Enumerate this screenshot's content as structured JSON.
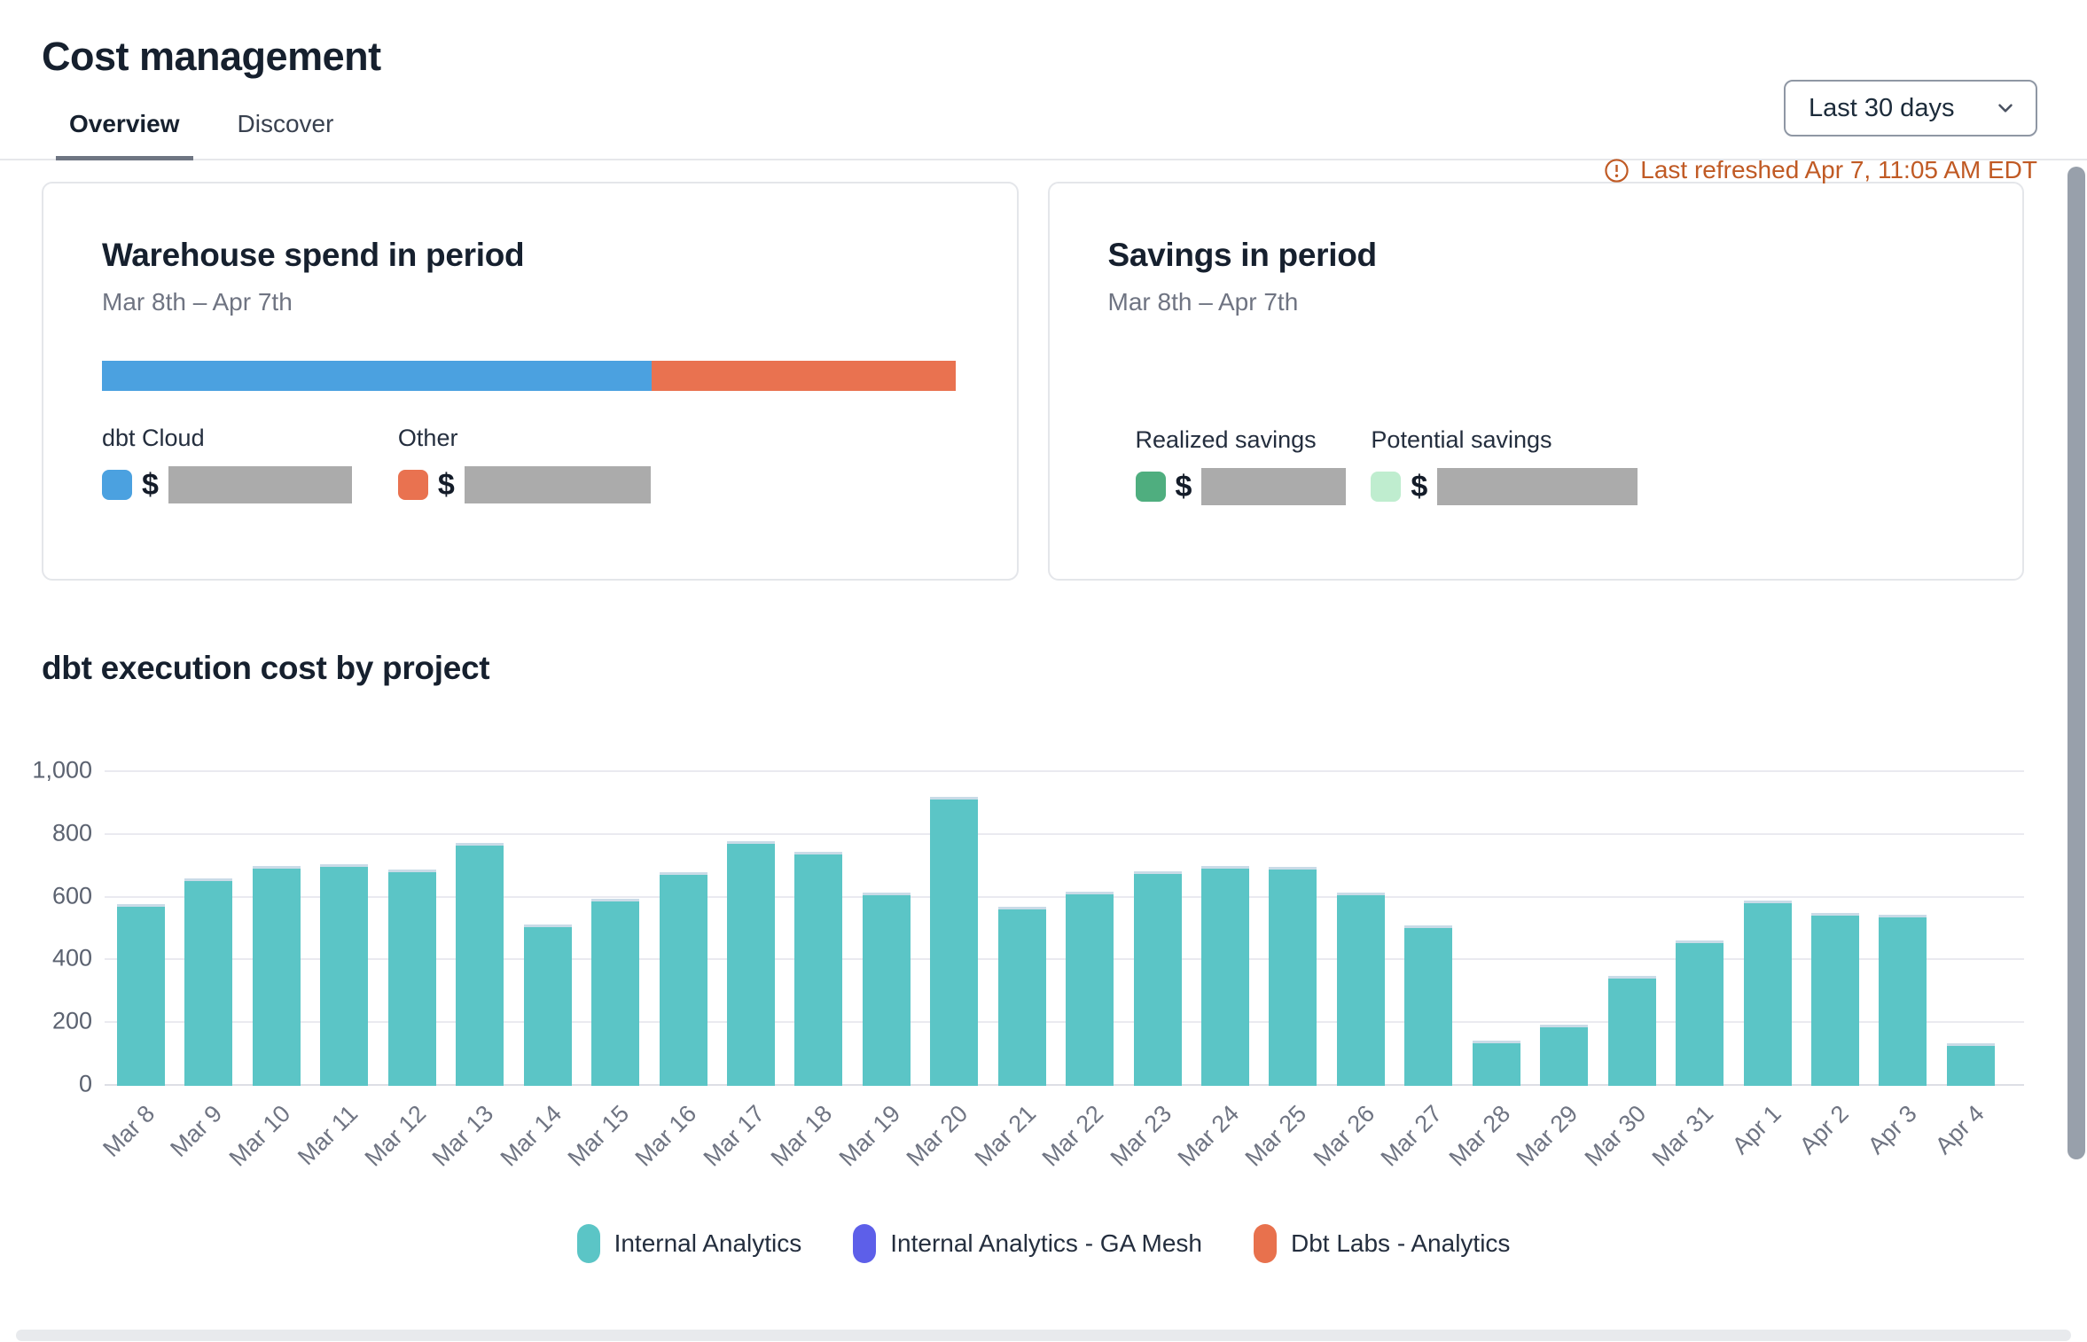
{
  "page": {
    "title": "Cost management"
  },
  "tabs": [
    {
      "label": "Overview",
      "active": true
    },
    {
      "label": "Discover",
      "active": false
    }
  ],
  "period_selector": {
    "value": "Last 30 days"
  },
  "refresh": {
    "text": "Last refreshed Apr 7, 11:05 AM EDT",
    "color": "#c05a24"
  },
  "cards": {
    "warehouse": {
      "title": "Warehouse spend in period",
      "date_range": "Mar 8th – Apr 7th",
      "currency_symbol": "$",
      "segments": [
        {
          "label": "dbt Cloud",
          "color": "#4ba1e0",
          "width_pct": 64.3
        },
        {
          "label": "Other",
          "color": "#e97250",
          "width_pct": 35.7
        }
      ]
    },
    "savings": {
      "title": "Savings in period",
      "date_range": "Mar 8th – Apr 7th",
      "currency_symbol": "$",
      "items": [
        {
          "label": "Realized savings",
          "color": "#4fae7f"
        },
        {
          "label": "Potential savings",
          "color": "#bfedcf"
        }
      ]
    }
  },
  "chart_section": {
    "title": "dbt execution cost by project"
  },
  "chart_data": {
    "type": "bar",
    "title": "dbt execution cost by project",
    "xlabel": "",
    "ylabel": "",
    "ylim": [
      0,
      1000
    ],
    "grid": true,
    "legend_position": "bottom",
    "bar_color": "#5bc5c6",
    "yticks": [
      {
        "v": 0,
        "label": "0"
      },
      {
        "v": 200,
        "label": "200"
      },
      {
        "v": 400,
        "label": "400"
      },
      {
        "v": 600,
        "label": "600"
      },
      {
        "v": 800,
        "label": "800"
      },
      {
        "v": 1000,
        "label": "1,000"
      }
    ],
    "categories": [
      "Mar 8",
      "Mar 9",
      "Mar 10",
      "Mar 11",
      "Mar 12",
      "Mar 13",
      "Mar 14",
      "Mar 15",
      "Mar 16",
      "Mar 17",
      "Mar 18",
      "Mar 19",
      "Mar 20",
      "Mar 21",
      "Mar 22",
      "Mar 23",
      "Mar 24",
      "Mar 25",
      "Mar 26",
      "Mar 27",
      "Mar 28",
      "Mar 29",
      "Mar 30",
      "Mar 31",
      "Apr 1",
      "Apr 2",
      "Apr 3",
      "Apr 4"
    ],
    "series": [
      {
        "name": "Internal Analytics",
        "color": "#5bc5c6",
        "values": [
          580,
          660,
          700,
          705,
          690,
          775,
          515,
          595,
          680,
          780,
          745,
          615,
          920,
          570,
          620,
          685,
          700,
          698,
          615,
          510,
          145,
          195,
          350,
          462,
          590,
          552,
          545,
          135
        ]
      },
      {
        "name": "Internal Analytics - GA Mesh",
        "color": "#5d5fe9",
        "values": []
      },
      {
        "name": "Dbt Labs - Analytics",
        "color": "#e8714d",
        "values": []
      }
    ]
  }
}
